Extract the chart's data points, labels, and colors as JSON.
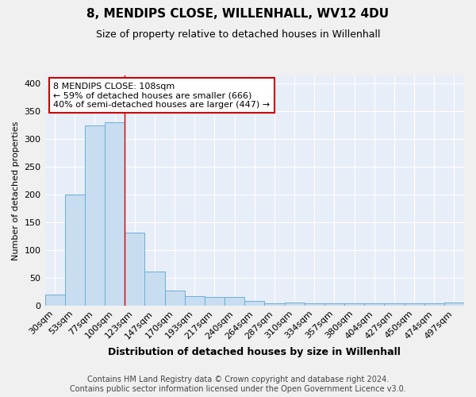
{
  "title1": "8, MENDIPS CLOSE, WILLENHALL, WV12 4DU",
  "title2": "Size of property relative to detached houses in Willenhall",
  "xlabel": "Distribution of detached houses by size in Willenhall",
  "ylabel": "Number of detached properties",
  "footnote1": "Contains HM Land Registry data © Crown copyright and database right 2024.",
  "footnote2": "Contains public sector information licensed under the Open Government Licence v3.0.",
  "bar_labels": [
    "30sqm",
    "53sqm",
    "77sqm",
    "100sqm",
    "123sqm",
    "147sqm",
    "170sqm",
    "193sqm",
    "217sqm",
    "240sqm",
    "264sqm",
    "287sqm",
    "310sqm",
    "334sqm",
    "357sqm",
    "380sqm",
    "404sqm",
    "427sqm",
    "450sqm",
    "474sqm",
    "497sqm"
  ],
  "bar_values": [
    20,
    200,
    325,
    330,
    132,
    62,
    27,
    17,
    16,
    15,
    8,
    4,
    5,
    4,
    4,
    4,
    4,
    4,
    4,
    4,
    6
  ],
  "bar_color": "#c8ddf0",
  "bar_edge_color": "#6baed6",
  "plot_bg_color": "#e8eef8",
  "grid_color": "#ffffff",
  "fig_bg_color": "#f0f0f0",
  "annotation_box_text": "8 MENDIPS CLOSE: 108sqm\n← 59% of detached houses are smaller (666)\n40% of semi-detached houses are larger (447) →",
  "annotation_box_color": "#ffffff",
  "annotation_box_edge_color": "#cc0000",
  "red_line_x": 3.5,
  "red_line_color": "#cc0000",
  "ylim": [
    0,
    415
  ],
  "yticks": [
    0,
    50,
    100,
    150,
    200,
    250,
    300,
    350,
    400
  ],
  "title1_fontsize": 11,
  "title2_fontsize": 9,
  "ylabel_fontsize": 8,
  "xlabel_fontsize": 9,
  "annot_fontsize": 8,
  "tick_fontsize": 8,
  "footnote_fontsize": 7
}
